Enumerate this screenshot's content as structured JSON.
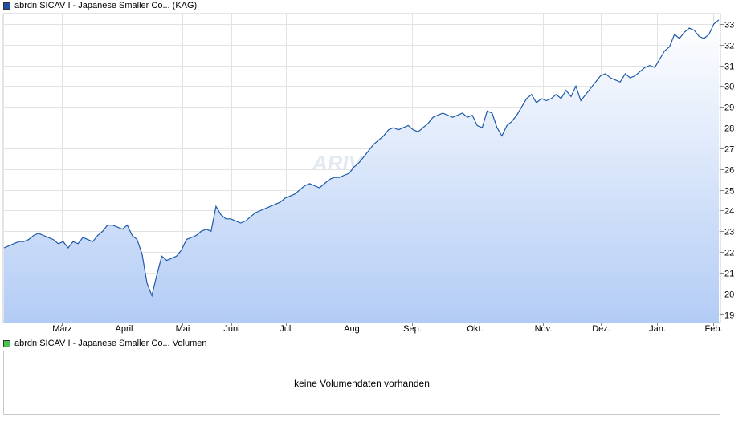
{
  "legend": {
    "price_label": "abrdn SICAV I - Japanese Smaller Co...  (KAG)",
    "price_color": "#1f4fa0",
    "volume_label": "abrdn SICAV I - Japanese Smaller Co... Volumen",
    "volume_color": "#4ec24e"
  },
  "watermark": "ARIVA.DE",
  "volume_message": "keine Volumendaten vorhanden",
  "chart_data": {
    "type": "area",
    "title": "",
    "xlabel": "",
    "ylabel": "",
    "x_ticks": [
      "März",
      "April",
      "Mai",
      "Juni",
      "Juli",
      "Aug.",
      "Sep.",
      "Okt.",
      "Nov.",
      "Dez.",
      "Jan.",
      "Feb."
    ],
    "y_ticks": [
      19,
      20,
      21,
      22,
      23,
      24,
      25,
      26,
      27,
      28,
      29,
      30,
      31,
      32,
      33
    ],
    "ylim": [
      18.6,
      33.5
    ],
    "grid": true,
    "series": [
      {
        "name": "abrdn SICAV I - Japanese Smaller Co...",
        "color": "#1f5aa8",
        "x_range": [
          "Feb.",
          "Feb."
        ],
        "values": [
          22.2,
          22.3,
          22.4,
          22.5,
          22.5,
          22.6,
          22.8,
          22.9,
          22.8,
          22.7,
          22.6,
          22.4,
          22.5,
          22.2,
          22.5,
          22.4,
          22.7,
          22.6,
          22.5,
          22.8,
          23.0,
          23.3,
          23.3,
          23.2,
          23.1,
          23.3,
          22.8,
          22.6,
          21.9,
          20.5,
          19.9,
          20.9,
          21.8,
          21.6,
          21.7,
          21.8,
          22.1,
          22.6,
          22.7,
          22.8,
          23.0,
          23.1,
          23.0,
          24.2,
          23.8,
          23.6,
          23.6,
          23.5,
          23.4,
          23.5,
          23.7,
          23.9,
          24.0,
          24.1,
          24.2,
          24.3,
          24.4,
          24.6,
          24.7,
          24.8,
          25.0,
          25.2,
          25.3,
          25.2,
          25.1,
          25.3,
          25.5,
          25.6,
          25.6,
          25.7,
          25.8,
          26.1,
          26.3,
          26.6,
          26.9,
          27.2,
          27.4,
          27.6,
          27.9,
          28.0,
          27.9,
          28.0,
          28.1,
          27.9,
          27.8,
          28.0,
          28.2,
          28.5,
          28.6,
          28.7,
          28.6,
          28.5,
          28.6,
          28.7,
          28.5,
          28.6,
          28.1,
          28.0,
          28.8,
          28.7,
          28.0,
          27.6,
          28.1,
          28.3,
          28.6,
          29.0,
          29.4,
          29.6,
          29.2,
          29.4,
          29.3,
          29.4,
          29.6,
          29.4,
          29.8,
          29.5,
          30.0,
          29.3,
          29.6,
          29.9,
          30.2,
          30.5,
          30.6,
          30.4,
          30.3,
          30.2,
          30.6,
          30.4,
          30.5,
          30.7,
          30.9,
          31.0,
          30.9,
          31.3,
          31.7,
          31.9,
          32.5,
          32.3,
          32.6,
          32.8,
          32.7,
          32.4,
          32.3,
          32.5,
          33.0,
          33.2
        ]
      }
    ]
  }
}
